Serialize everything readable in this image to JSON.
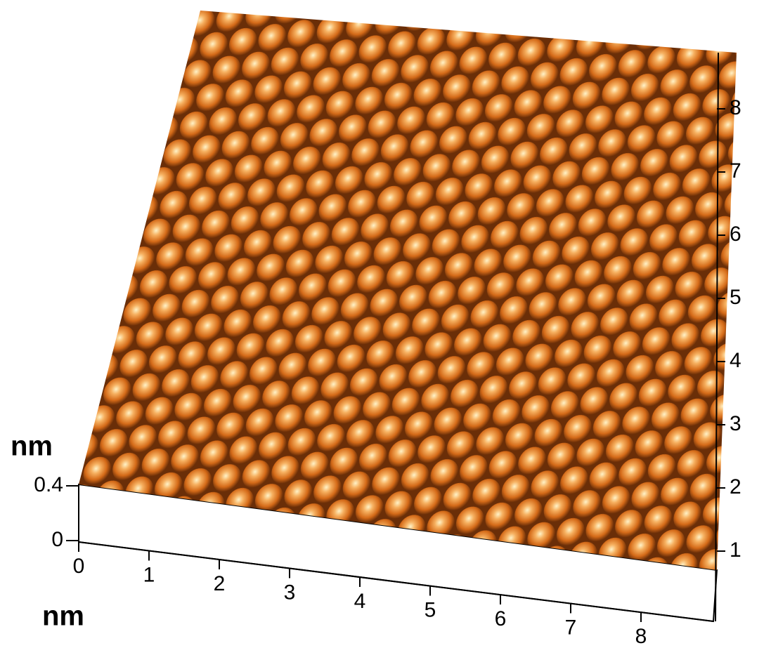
{
  "z_axis": {
    "label": "nm",
    "ticks": [
      0,
      0.4
    ]
  },
  "x_axis": {
    "label": "nm",
    "ticks": [
      0,
      1,
      2,
      3,
      4,
      5,
      6,
      7,
      8
    ]
  },
  "y_axis": {
    "ticks": [
      1,
      2,
      3,
      4,
      5,
      6,
      7,
      8
    ]
  }
}
